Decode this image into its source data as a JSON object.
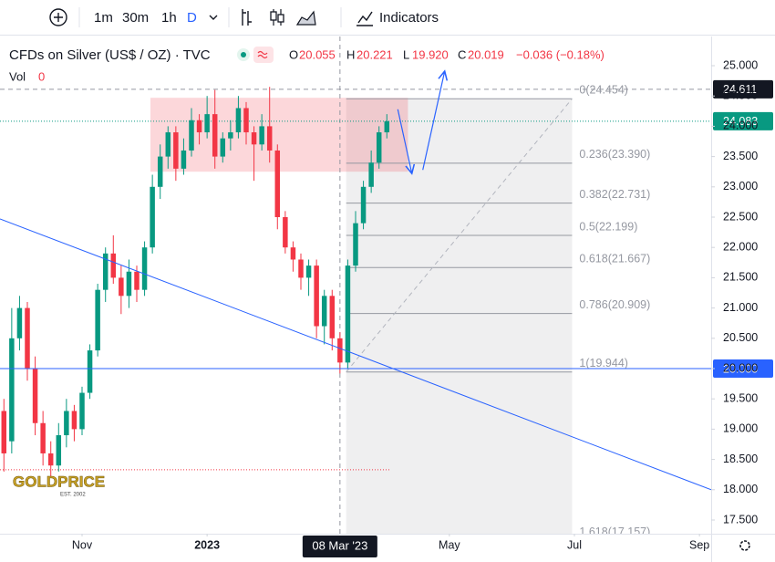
{
  "toolbar": {
    "intervals": [
      "1m",
      "30m",
      "1h",
      "D"
    ],
    "indicators": "Indicators"
  },
  "legend": {
    "symbol": "CFDs on Silver (US$ / OZ) · TVC",
    "open_label": "O",
    "open": "20.055",
    "high_label": "H",
    "high": "20.221",
    "low_label": "L",
    "low": "19.920",
    "close_label": "C",
    "close": "20.019",
    "change": "−0.036 (−0.18%)",
    "volume_label": "Vol",
    "volume": "0"
  },
  "logo": {
    "name": "GOLDPRICE",
    "since": "EST. 2002"
  },
  "chart_data": {
    "type": "candlestick",
    "up_color": "#089981",
    "down_color": "#f23645",
    "open": [
      19.3,
      18.8,
      20.5,
      21.0,
      20.0,
      19.1,
      18.6,
      18.4,
      18.9,
      19.3,
      19.0,
      19.6,
      20.3,
      21.3,
      21.9,
      21.5,
      21.2,
      21.6,
      21.3,
      22.0,
      23.0,
      23.5,
      23.9,
      23.3,
      23.6,
      24.1,
      23.9,
      24.2,
      23.5,
      23.8,
      23.9,
      24.3,
      23.9,
      23.7,
      24.0,
      23.6,
      22.5,
      22.0,
      21.8,
      21.5,
      21.7,
      20.7,
      21.2,
      20.5,
      20.1,
      21.7,
      22.4,
      23.0,
      23.4,
      23.9
    ],
    "high": [
      19.5,
      21.0,
      21.2,
      21.1,
      20.2,
      19.3,
      18.8,
      19.1,
      19.5,
      19.4,
      19.7,
      20.4,
      21.4,
      22.0,
      22.2,
      21.7,
      21.8,
      21.7,
      22.1,
      23.2,
      23.7,
      24.0,
      24.0,
      23.8,
      24.3,
      24.2,
      24.5,
      24.6,
      23.9,
      24.1,
      24.5,
      24.4,
      24.0,
      24.2,
      24.65,
      23.7,
      22.6,
      22.1,
      21.9,
      21.8,
      21.8,
      21.3,
      21.3,
      20.6,
      21.8,
      22.6,
      23.1,
      23.6,
      24.0,
      24.2
    ],
    "low": [
      18.3,
      18.6,
      20.3,
      19.8,
      18.9,
      18.4,
      18.2,
      18.3,
      18.7,
      18.8,
      18.9,
      19.5,
      20.2,
      21.1,
      21.4,
      20.9,
      21.0,
      21.1,
      21.2,
      21.9,
      22.8,
      23.3,
      23.1,
      23.2,
      23.5,
      23.7,
      23.8,
      23.3,
      23.4,
      23.6,
      23.8,
      23.7,
      23.1,
      23.6,
      23.4,
      22.3,
      21.9,
      21.6,
      21.3,
      21.2,
      20.5,
      20.4,
      20.3,
      19.92,
      20.0,
      21.6,
      22.3,
      22.9,
      23.3,
      23.8
    ],
    "close": [
      18.6,
      20.5,
      21.0,
      20.0,
      19.1,
      18.6,
      18.4,
      18.9,
      19.3,
      19.0,
      19.6,
      20.3,
      21.3,
      21.9,
      21.5,
      21.2,
      21.6,
      21.3,
      22.0,
      23.0,
      23.5,
      23.9,
      23.3,
      23.6,
      24.1,
      23.9,
      24.2,
      23.5,
      23.8,
      23.9,
      24.3,
      23.9,
      23.7,
      24.0,
      23.6,
      22.5,
      22.0,
      21.8,
      21.5,
      21.7,
      20.7,
      21.2,
      20.5,
      20.1,
      21.7,
      22.4,
      23.0,
      23.4,
      23.9,
      24.083
    ],
    "xlim": [
      -0.5,
      90.5
    ],
    "xticks": [
      {
        "value": 10,
        "label": "Nov"
      },
      {
        "value": 26,
        "label": "2023"
      },
      {
        "value": 57,
        "label": "May"
      },
      {
        "value": 73,
        "label": "Jul"
      },
      {
        "value": 89,
        "label": "Sep"
      }
    ],
    "ylim": [
      17.274,
      25.482
    ],
    "yticks": [
      {
        "value": 25,
        "label": "25.000"
      },
      {
        "value": 24.5,
        "label": "24.500"
      },
      {
        "value": 24,
        "label": "24.000"
      },
      {
        "value": 23.5,
        "label": "23.500"
      },
      {
        "value": 23,
        "label": "23.000"
      },
      {
        "value": 22.5,
        "label": "22.500"
      },
      {
        "value": 22,
        "label": "22.000"
      },
      {
        "value": 21.5,
        "label": "21.500"
      },
      {
        "value": 21,
        "label": "21.000"
      },
      {
        "value": 20.5,
        "label": "20.500"
      },
      {
        "value": 20,
        "label": "20.000"
      },
      {
        "value": 19.5,
        "label": "19.500"
      },
      {
        "value": 19,
        "label": "19.000"
      },
      {
        "value": 18.5,
        "label": "18.500"
      },
      {
        "value": 18,
        "label": "18.000"
      },
      {
        "value": 17.5,
        "label": "17.500"
      }
    ],
    "grid": false,
    "crosshair": {
      "x": 43,
      "x_label": "08 Mar '23",
      "y": 24.611
    },
    "last_price": 24.083,
    "support": {
      "value": 20,
      "label": "20.000"
    },
    "low_line": {
      "value": 18.33,
      "x": [
        -0.5,
        49.5
      ]
    },
    "zone": {
      "x": [
        18.75,
        51.7
      ],
      "y": [
        23.25,
        24.47
      ]
    },
    "trendline": {
      "x": [
        -0.5,
        90.5
      ],
      "y": [
        22.47,
        18.0
      ]
    },
    "arrows": [
      {
        "x": [
          50.4,
          52.2
        ],
        "y": [
          24.28,
          23.22
        ]
      },
      {
        "x": [
          53.6,
          56.4
        ],
        "y": [
          23.28,
          24.91
        ]
      }
    ],
    "fib": {
      "x": [
        43.8,
        72.7
      ],
      "levels": [
        {
          "value": 24.454,
          "label": "0(24.454)"
        },
        {
          "value": 23.39,
          "label": "0.236(23.390)"
        },
        {
          "value": 22.731,
          "label": "0.382(22.731)"
        },
        {
          "value": 22.199,
          "label": "0.5(22.199)"
        },
        {
          "value": 21.667,
          "label": "0.618(21.667)"
        },
        {
          "value": 20.909,
          "label": "0.786(20.909)"
        },
        {
          "value": 19.944,
          "label": "1(19.944)"
        },
        {
          "value": 17.157,
          "label": "1.618(17.157)"
        }
      ]
    }
  }
}
